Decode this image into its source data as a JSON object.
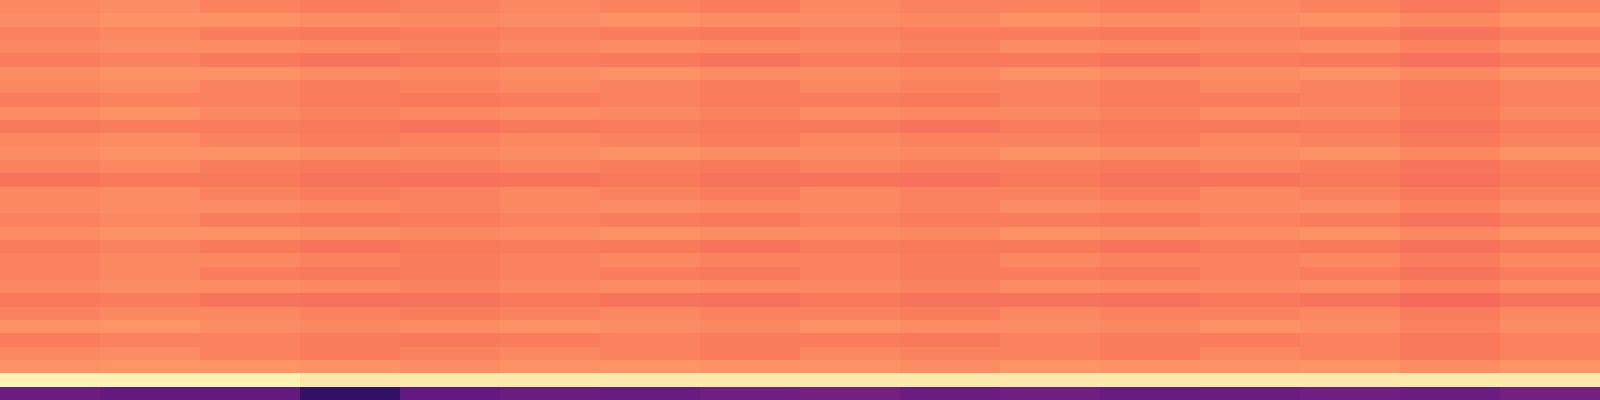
{
  "chart_data": {
    "type": "heatmap",
    "color": "magma",
    "tick_labels": false,
    "color_range": [
      0,
      1
    ],
    "cells": [
      [
        0.75,
        0.76,
        0.74,
        0.73,
        0.74,
        0.75,
        0.74,
        0.73,
        0.75,
        0.74,
        0.74,
        0.73,
        0.75,
        0.74,
        0.72,
        0.74
      ],
      [
        0.76,
        0.77,
        0.77,
        0.76,
        0.75,
        0.76,
        0.77,
        0.76,
        0.76,
        0.75,
        0.77,
        0.76,
        0.76,
        0.77,
        0.75,
        0.77
      ],
      [
        0.74,
        0.75,
        0.73,
        0.72,
        0.73,
        0.74,
        0.73,
        0.72,
        0.74,
        0.73,
        0.73,
        0.72,
        0.74,
        0.73,
        0.71,
        0.73
      ],
      [
        0.75,
        0.76,
        0.76,
        0.75,
        0.74,
        0.75,
        0.76,
        0.75,
        0.75,
        0.74,
        0.76,
        0.75,
        0.75,
        0.76,
        0.74,
        0.76
      ],
      [
        0.73,
        0.74,
        0.72,
        0.71,
        0.72,
        0.73,
        0.72,
        0.71,
        0.73,
        0.72,
        0.72,
        0.71,
        0.73,
        0.72,
        0.7,
        0.72
      ],
      [
        0.76,
        0.77,
        0.77,
        0.76,
        0.75,
        0.76,
        0.77,
        0.76,
        0.76,
        0.75,
        0.77,
        0.76,
        0.76,
        0.77,
        0.75,
        0.77
      ],
      [
        0.75,
        0.76,
        0.74,
        0.73,
        0.74,
        0.75,
        0.74,
        0.73,
        0.75,
        0.74,
        0.74,
        0.73,
        0.75,
        0.74,
        0.72,
        0.74
      ],
      [
        0.73,
        0.74,
        0.74,
        0.73,
        0.72,
        0.73,
        0.74,
        0.73,
        0.73,
        0.72,
        0.74,
        0.73,
        0.73,
        0.74,
        0.72,
        0.74
      ],
      [
        0.76,
        0.77,
        0.75,
        0.74,
        0.75,
        0.76,
        0.75,
        0.74,
        0.76,
        0.75,
        0.75,
        0.74,
        0.76,
        0.75,
        0.73,
        0.75
      ],
      [
        0.72,
        0.73,
        0.73,
        0.72,
        0.71,
        0.72,
        0.73,
        0.72,
        0.72,
        0.71,
        0.73,
        0.72,
        0.72,
        0.73,
        0.71,
        0.73
      ],
      [
        0.75,
        0.76,
        0.74,
        0.73,
        0.74,
        0.75,
        0.74,
        0.73,
        0.75,
        0.74,
        0.74,
        0.73,
        0.75,
        0.74,
        0.72,
        0.74
      ],
      [
        0.76,
        0.77,
        0.77,
        0.76,
        0.75,
        0.76,
        0.77,
        0.76,
        0.76,
        0.75,
        0.77,
        0.76,
        0.76,
        0.77,
        0.75,
        0.77
      ],
      [
        0.74,
        0.75,
        0.73,
        0.72,
        0.73,
        0.74,
        0.73,
        0.72,
        0.74,
        0.73,
        0.73,
        0.72,
        0.74,
        0.73,
        0.71,
        0.73
      ],
      [
        0.71,
        0.72,
        0.72,
        0.71,
        0.7,
        0.71,
        0.72,
        0.71,
        0.71,
        0.7,
        0.72,
        0.71,
        0.71,
        0.72,
        0.7,
        0.72
      ],
      [
        0.75,
        0.76,
        0.74,
        0.73,
        0.74,
        0.75,
        0.74,
        0.73,
        0.75,
        0.74,
        0.74,
        0.73,
        0.75,
        0.74,
        0.72,
        0.74
      ],
      [
        0.75,
        0.76,
        0.76,
        0.75,
        0.74,
        0.75,
        0.76,
        0.75,
        0.75,
        0.74,
        0.76,
        0.75,
        0.75,
        0.76,
        0.74,
        0.76
      ],
      [
        0.74,
        0.75,
        0.73,
        0.72,
        0.73,
        0.74,
        0.73,
        0.72,
        0.74,
        0.73,
        0.73,
        0.72,
        0.74,
        0.73,
        0.71,
        0.73
      ],
      [
        0.76,
        0.77,
        0.77,
        0.76,
        0.75,
        0.76,
        0.77,
        0.76,
        0.76,
        0.75,
        0.77,
        0.76,
        0.76,
        0.77,
        0.75,
        0.77
      ],
      [
        0.73,
        0.74,
        0.72,
        0.71,
        0.72,
        0.73,
        0.72,
        0.71,
        0.73,
        0.72,
        0.72,
        0.71,
        0.73,
        0.72,
        0.7,
        0.72
      ],
      [
        0.74,
        0.75,
        0.75,
        0.74,
        0.73,
        0.74,
        0.75,
        0.74,
        0.74,
        0.73,
        0.75,
        0.74,
        0.74,
        0.75,
        0.73,
        0.75
      ],
      [
        0.74,
        0.75,
        0.73,
        0.72,
        0.73,
        0.74,
        0.73,
        0.72,
        0.74,
        0.73,
        0.73,
        0.72,
        0.74,
        0.73,
        0.71,
        0.73
      ],
      [
        0.75,
        0.76,
        0.76,
        0.75,
        0.74,
        0.75,
        0.76,
        0.75,
        0.75,
        0.74,
        0.76,
        0.75,
        0.75,
        0.76,
        0.74,
        0.76
      ],
      [
        0.72,
        0.73,
        0.71,
        0.7,
        0.71,
        0.72,
        0.71,
        0.7,
        0.72,
        0.71,
        0.71,
        0.7,
        0.72,
        0.71,
        0.69,
        0.71
      ],
      [
        0.74,
        0.75,
        0.75,
        0.74,
        0.73,
        0.74,
        0.75,
        0.74,
        0.74,
        0.73,
        0.75,
        0.74,
        0.74,
        0.75,
        0.73,
        0.75
      ],
      [
        0.77,
        0.78,
        0.76,
        0.75,
        0.76,
        0.77,
        0.76,
        0.75,
        0.77,
        0.76,
        0.76,
        0.75,
        0.77,
        0.76,
        0.74,
        0.76
      ],
      [
        0.73,
        0.74,
        0.74,
        0.73,
        0.72,
        0.73,
        0.74,
        0.73,
        0.73,
        0.72,
        0.74,
        0.73,
        0.73,
        0.74,
        0.72,
        0.74
      ],
      [
        0.75,
        0.76,
        0.74,
        0.73,
        0.74,
        0.75,
        0.74,
        0.73,
        0.75,
        0.74,
        0.74,
        0.73,
        0.75,
        0.74,
        0.72,
        0.74
      ],
      [
        0.77,
        0.78,
        0.78,
        0.77,
        0.76,
        0.77,
        0.78,
        0.77,
        0.77,
        0.76,
        0.78,
        0.77,
        0.77,
        0.78,
        0.76,
        0.78
      ],
      [
        0.98,
        0.98,
        0.98,
        0.95,
        0.96,
        0.96,
        0.96,
        0.96,
        0.96,
        0.96,
        0.96,
        0.96,
        0.96,
        0.96,
        0.96,
        0.96
      ],
      [
        0.32,
        0.3,
        0.3,
        0.18,
        0.3,
        0.32,
        0.31,
        0.33,
        0.34,
        0.32,
        0.33,
        0.31,
        0.32,
        0.33,
        0.32,
        0.34
      ]
    ]
  }
}
